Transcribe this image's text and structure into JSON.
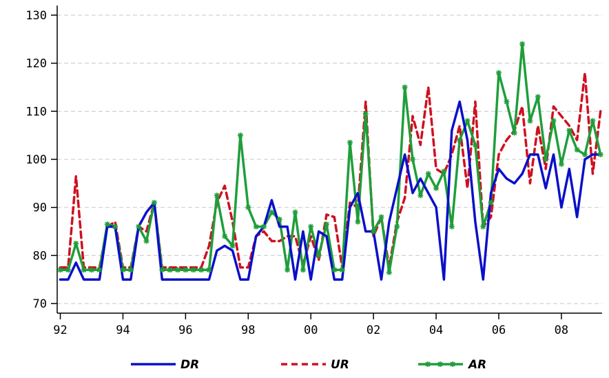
{
  "chart_data": {
    "type": "line",
    "title": "",
    "xlabel": "",
    "ylabel": "",
    "xlim": [
      1991.9,
      2009.3
    ],
    "ylim": [
      68,
      132
    ],
    "x_ticks": [
      1992,
      1994,
      1996,
      1998,
      2000,
      2002,
      2004,
      2006,
      2008
    ],
    "x_tick_labels": [
      "92",
      "94",
      "96",
      "98",
      "00",
      "02",
      "04",
      "06",
      "08"
    ],
    "y_ticks": [
      70,
      80,
      90,
      100,
      110,
      120,
      130
    ],
    "y_tick_labels": [
      "70",
      "80",
      "90",
      "100",
      "110",
      "120",
      "130"
    ],
    "grid": "horizontal dashed",
    "legend_position": "bottom",
    "x": [
      1992.0,
      1992.25,
      1992.5,
      1992.75,
      1993.0,
      1993.25,
      1993.5,
      1993.75,
      1994.0,
      1994.25,
      1994.5,
      1994.75,
      1995.0,
      1995.25,
      1995.5,
      1995.75,
      1996.0,
      1996.25,
      1996.5,
      1996.75,
      1997.0,
      1997.25,
      1997.5,
      1997.75,
      1998.0,
      1998.25,
      1998.5,
      1998.75,
      1999.0,
      1999.25,
      1999.5,
      1999.75,
      2000.0,
      2000.25,
      2000.5,
      2000.75,
      2001.0,
      2001.25,
      2001.5,
      2001.75,
      2002.0,
      2002.25,
      2002.5,
      2002.75,
      2003.0,
      2003.25,
      2003.5,
      2003.75,
      2004.0,
      2004.25,
      2004.5,
      2004.75,
      2005.0,
      2005.25,
      2005.5,
      2005.75,
      2006.0,
      2006.25,
      2006.5,
      2006.75,
      2007.0,
      2007.25,
      2007.5,
      2007.75,
      2008.0,
      2008.25,
      2008.5,
      2008.75,
      2009.0,
      2009.25
    ],
    "series": [
      {
        "name": "DR",
        "color": "#0a10c8",
        "style": "solid",
        "values": [
          75,
          75,
          78.5,
          75,
          75,
          75,
          86,
          86,
          75,
          75,
          86,
          89,
          91,
          75,
          75,
          75,
          75,
          75,
          75,
          75,
          81,
          82,
          81,
          75,
          75,
          84,
          86,
          91.5,
          86,
          86,
          75,
          85,
          75,
          85,
          84,
          75,
          75,
          90,
          93,
          85,
          85,
          75,
          87,
          94,
          101,
          93,
          96,
          93,
          90,
          75,
          106,
          112,
          104,
          87,
          75,
          93,
          98,
          96,
          95,
          97,
          101,
          101,
          94,
          101,
          90,
          98,
          88,
          100,
          101,
          101
        ],
        "markers": false
      },
      {
        "name": "UR",
        "color": "#d01020",
        "style": "dashed",
        "values": [
          77.5,
          77.5,
          96.5,
          77.5,
          77.5,
          77.5,
          86,
          87,
          77.5,
          77.5,
          86,
          85,
          91,
          77.5,
          77.5,
          77.5,
          77.5,
          77.5,
          77.5,
          82,
          91,
          94.5,
          87,
          77.5,
          77.5,
          84,
          85,
          83,
          83,
          84,
          84,
          78,
          84,
          79,
          88.5,
          88,
          77.5,
          91,
          90,
          112,
          84,
          88,
          77.5,
          87,
          92,
          109,
          103,
          115,
          98,
          97,
          101,
          107,
          94,
          112,
          86,
          88,
          101,
          104,
          106,
          111,
          95,
          107,
          98,
          111,
          109,
          107,
          104,
          118,
          97,
          110
        ]
      },
      {
        "name": "AR",
        "color": "#1f9e3a",
        "style": "solid",
        "values": [
          77,
          77,
          82.5,
          77,
          77,
          77,
          86.5,
          86,
          77,
          77,
          86,
          83,
          91,
          77,
          77,
          77,
          77,
          77,
          77,
          77,
          92.5,
          84,
          82,
          105,
          90,
          86,
          86,
          89,
          87.5,
          77,
          89,
          77,
          86,
          80,
          86.5,
          77,
          77,
          103.5,
          87,
          109.5,
          85,
          88,
          76.5,
          86,
          115,
          100,
          92.5,
          97,
          94,
          97.5,
          86,
          104,
          108,
          103,
          86,
          91,
          118,
          112,
          105.5,
          124,
          108,
          113,
          100,
          108,
          99,
          106,
          102,
          101,
          108,
          101
        ],
        "markers": true
      }
    ]
  }
}
